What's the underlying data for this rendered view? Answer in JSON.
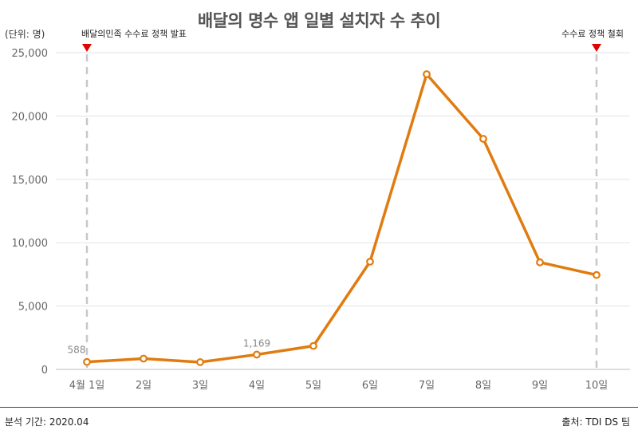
{
  "chart_data": {
    "type": "line",
    "title": "배달의 명수 앱 일별 설치자 수 추이",
    "ylabel": "(단위: 명)",
    "xlabel": "",
    "categories": [
      "4월 1일",
      "2일",
      "3일",
      "4일",
      "5일",
      "6일",
      "7일",
      "8일",
      "9일",
      "10일"
    ],
    "series": [
      {
        "values": [
          588,
          850,
          570,
          1169,
          1850,
          8500,
          23300,
          18200,
          8450,
          7450
        ]
      }
    ],
    "ylim": [
      0,
      25000
    ],
    "yticks": [
      "0",
      "5,000",
      "10,000",
      "15,000",
      "20,000",
      "25,000"
    ],
    "ytick_values": [
      0,
      5000,
      10000,
      15000,
      20000,
      25000
    ],
    "data_labels": [
      {
        "index": 0,
        "text": "588"
      },
      {
        "index": 3,
        "text": "1,169"
      }
    ],
    "annotations": [
      {
        "index": 0,
        "text": "배달의민족 수수료 정책 발표"
      },
      {
        "index": 9,
        "text": "수수료 정책 철회"
      }
    ],
    "grid": true,
    "colors": {
      "line": "#E07B10",
      "grid": "#e3e3e3",
      "marker": "#E00000",
      "guide": "#c8c8c8"
    }
  },
  "footer": {
    "period": "분석 기간: 2020.04",
    "source": "출처: TDI DS 팀"
  }
}
